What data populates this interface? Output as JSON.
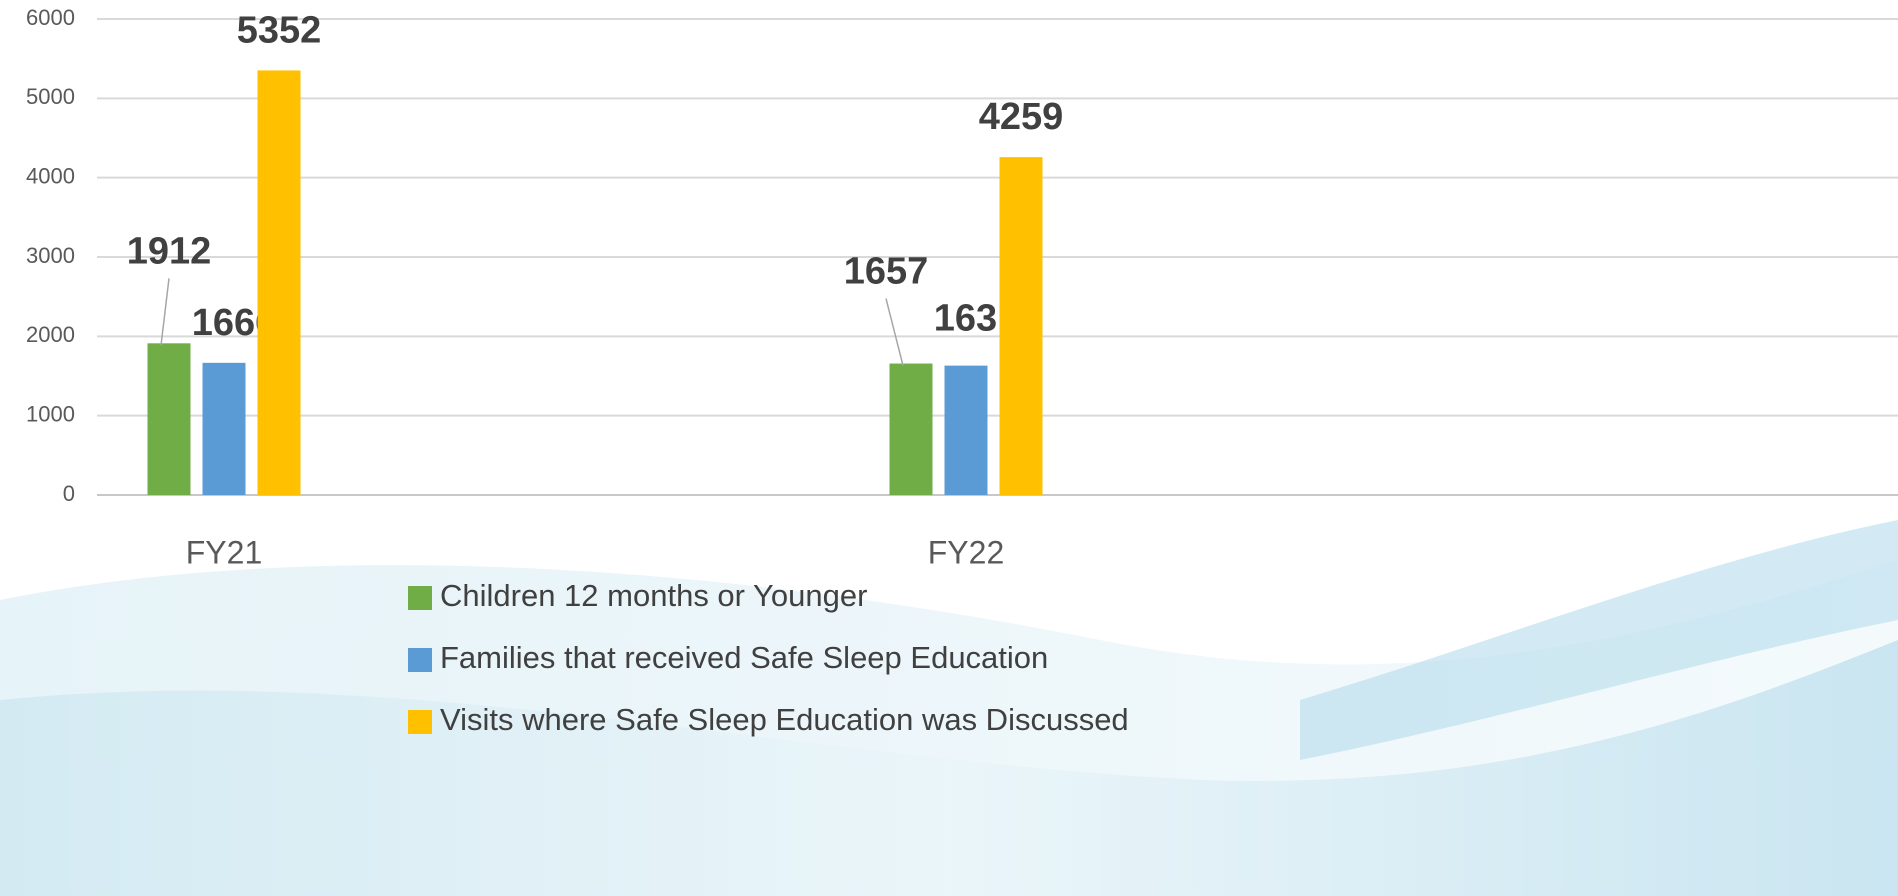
{
  "chart_data": {
    "type": "bar",
    "categories": [
      "FY21",
      "FY22"
    ],
    "series": [
      {
        "name": "Children 12 months or Younger",
        "color": "#70ad47",
        "values": [
          1912,
          1657
        ]
      },
      {
        "name": "Families that received Safe Sleep Education",
        "color": "#5b9bd5",
        "values": [
          1666,
          1631
        ]
      },
      {
        "name": "Visits where Safe Sleep Education was Discussed",
        "color": "#ffc000",
        "values": [
          5352,
          4259
        ]
      }
    ],
    "ylim": [
      0,
      6000
    ],
    "yticks": [
      0,
      1000,
      2000,
      3000,
      4000,
      5000,
      6000
    ],
    "grid": true,
    "legend": "bottom"
  }
}
